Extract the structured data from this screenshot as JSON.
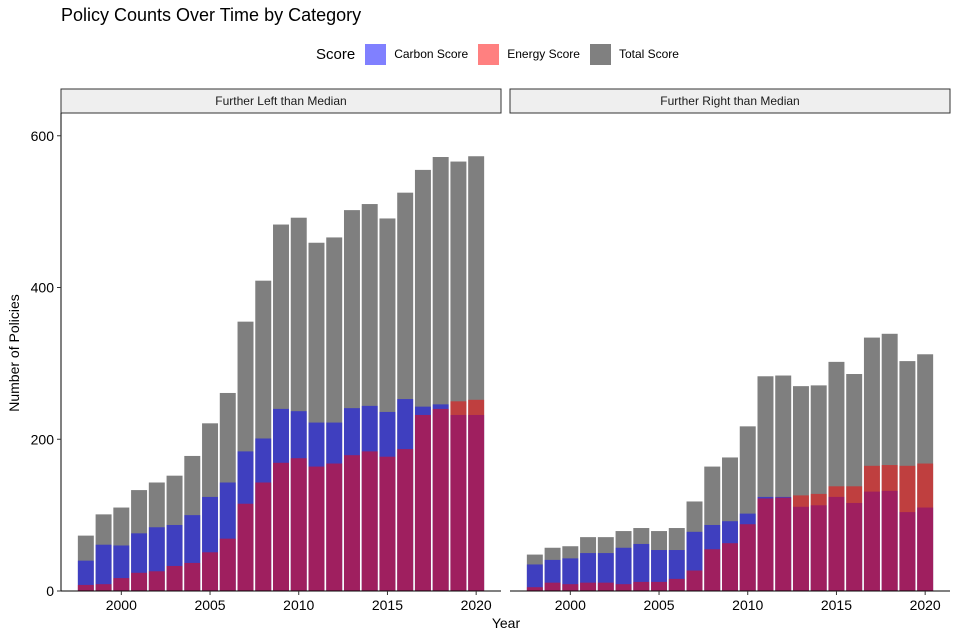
{
  "chart_data": {
    "type": "bar",
    "title": "Policy Counts Over Time by Category",
    "xlabel": "Year",
    "ylabel": "Number of Policies",
    "ylim": [
      0,
      630
    ],
    "xlim": [
      1996.6,
      2021.4
    ],
    "x_ticks": [
      2000,
      2005,
      2010,
      2015,
      2020
    ],
    "y_ticks": [
      0,
      200,
      400,
      600
    ],
    "grid": false,
    "legend": {
      "title": "Score",
      "position": "top",
      "entries": [
        {
          "name": "Carbon Score",
          "color": "#0000ff",
          "alpha": 0.5
        },
        {
          "name": "Energy Score",
          "color": "#ff0000",
          "alpha": 0.5
        },
        {
          "name": "Total Score",
          "color": "#000000",
          "alpha": 0.5
        }
      ]
    },
    "years": [
      1998,
      1999,
      2000,
      2001,
      2002,
      2003,
      2004,
      2005,
      2006,
      2007,
      2008,
      2009,
      2010,
      2011,
      2012,
      2013,
      2014,
      2015,
      2016,
      2017,
      2018,
      2019,
      2020
    ],
    "panels": [
      {
        "label": "Further Left than Median",
        "series": [
          {
            "name": "Total Score",
            "values": [
              73,
              101,
              110,
              133,
              143,
              152,
              178,
              221,
              261,
              355,
              409,
              483,
              492,
              459,
              466,
              502,
              510,
              491,
              525,
              555,
              572,
              566,
              573
            ]
          },
          {
            "name": "Carbon Score",
            "values": [
              40,
              61,
              60,
              76,
              84,
              87,
              100,
              124,
              143,
              184,
              201,
              240,
              237,
              222,
              222,
              241,
              244,
              236,
              253,
              243,
              246,
              232,
              232
            ]
          },
          {
            "name": "Energy Score",
            "values": [
              8,
              9,
              17,
              24,
              26,
              33,
              37,
              51,
              69,
              115,
              143,
              169,
              175,
              164,
              168,
              179,
              184,
              177,
              187,
              232,
              240,
              250,
              252
            ]
          }
        ]
      },
      {
        "label": "Further Right than Median",
        "series": [
          {
            "name": "Total Score",
            "values": [
              48,
              57,
              59,
              71,
              71,
              79,
              83,
              79,
              83,
              118,
              164,
              176,
              217,
              283,
              284,
              270,
              271,
              302,
              286,
              334,
              339,
              303,
              312
            ]
          },
          {
            "name": "Carbon Score",
            "values": [
              35,
              41,
              43,
              50,
              50,
              57,
              62,
              54,
              54,
              78,
              87,
              92,
              102,
              124,
              124,
              111,
              113,
              124,
              116,
              131,
              132,
              104,
              110
            ]
          },
          {
            "name": "Energy Score",
            "values": [
              5,
              11,
              9,
              11,
              11,
              9,
              12,
              12,
              16,
              27,
              55,
              63,
              88,
              122,
              123,
              126,
              128,
              138,
              138,
              165,
              166,
              165,
              168
            ]
          }
        ]
      }
    ]
  }
}
